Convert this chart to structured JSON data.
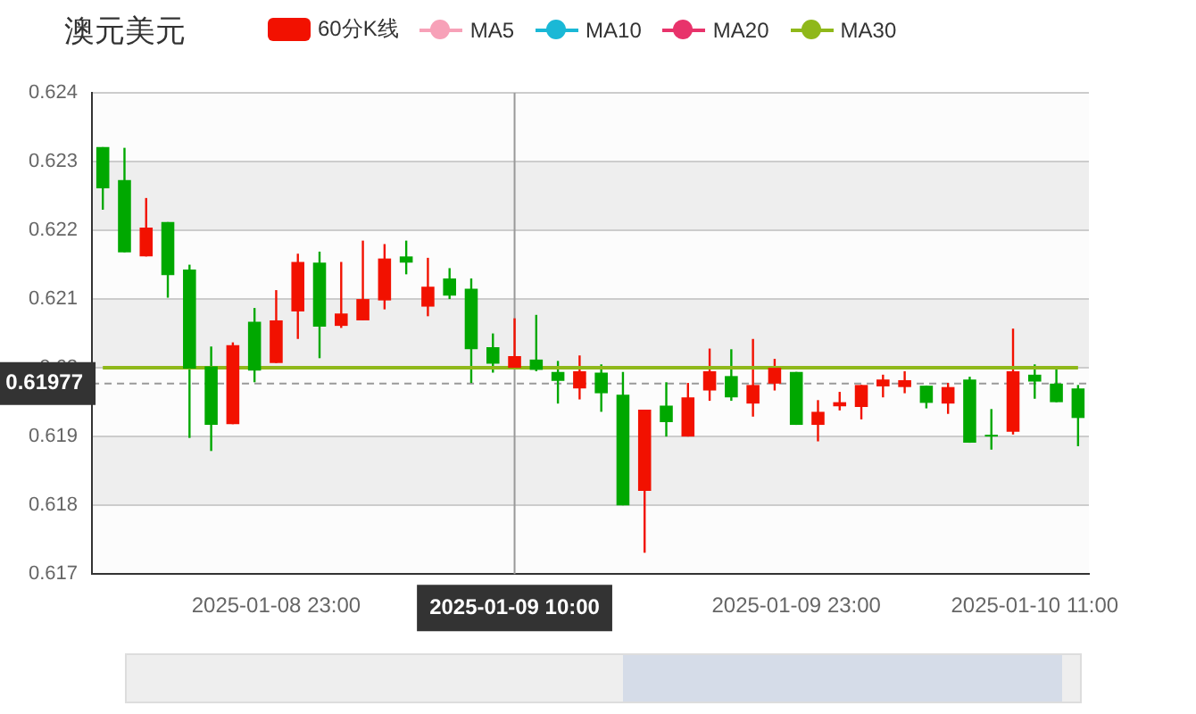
{
  "chart_data": {
    "type": "candlestick",
    "title": "澳元美元",
    "categories": [
      null,
      null,
      null,
      null,
      null,
      null,
      null,
      null,
      "2025-01-08 23:00",
      null,
      null,
      null,
      null,
      null,
      null,
      null,
      null,
      null,
      null,
      "2025-01-09 10:00",
      null,
      null,
      null,
      null,
      null,
      null,
      null,
      null,
      null,
      null,
      null,
      null,
      "2025-01-09 23:00",
      null,
      null,
      null,
      null,
      null,
      null,
      null,
      null,
      null,
      null,
      "2025-01-10 11:00",
      null,
      null
    ],
    "series": [
      {
        "name": "60分K线",
        "color": "#f21100",
        "ohlc": [
          [
            0.62321,
            0.62321,
            0.6223,
            0.62261
          ],
          [
            0.62273,
            0.6232,
            0.62168,
            0.62168
          ],
          [
            0.62162,
            0.62247,
            0.62162,
            0.62204
          ],
          [
            0.62212,
            0.62212,
            0.62102,
            0.62135
          ],
          [
            0.62143,
            0.6215,
            0.61898,
            0.61999
          ],
          [
            0.62002,
            0.62031,
            0.61879,
            0.61917
          ],
          [
            0.61918,
            0.62037,
            0.61918,
            0.62033
          ],
          [
            0.62067,
            0.62087,
            0.61979,
            0.61996
          ],
          [
            0.62007,
            0.62113,
            0.62007,
            0.62069
          ],
          [
            0.62082,
            0.62166,
            0.62042,
            0.62154
          ],
          [
            0.62153,
            0.62169,
            0.62014,
            0.6206
          ],
          [
            0.62061,
            0.62154,
            0.62058,
            0.62079
          ],
          [
            0.62069,
            0.62185,
            0.62069,
            0.621
          ],
          [
            0.62098,
            0.6218,
            0.62085,
            0.62159
          ],
          [
            0.62162,
            0.62185,
            0.62136,
            0.62153
          ],
          [
            0.62089,
            0.6216,
            0.62075,
            0.62118
          ],
          [
            0.6213,
            0.62145,
            0.621,
            0.62105
          ],
          [
            0.62115,
            0.6213,
            0.61978,
            0.62027
          ],
          [
            0.6203,
            0.6205,
            0.61993,
            0.62006
          ],
          [
            0.62,
            0.62072,
            0.62,
            0.62017
          ],
          [
            0.62012,
            0.62077,
            0.61995,
            0.61997
          ],
          [
            0.61994,
            0.6201,
            0.61948,
            0.61981
          ],
          [
            0.6197,
            0.62018,
            0.61954,
            0.61995
          ],
          [
            0.61993,
            0.62005,
            0.61936,
            0.61963
          ],
          [
            0.61961,
            0.61994,
            0.618,
            0.618
          ],
          [
            0.61821,
            0.61939,
            0.61731,
            0.61939
          ],
          [
            0.61945,
            0.61979,
            0.619,
            0.61921
          ],
          [
            0.619,
            0.61978,
            0.619,
            0.61957
          ],
          [
            0.61967,
            0.62028,
            0.61952,
            0.61995
          ],
          [
            0.61988,
            0.62027,
            0.61952,
            0.61957
          ],
          [
            0.61948,
            0.62042,
            0.61929,
            0.61975
          ],
          [
            0.61977,
            0.62013,
            0.61967,
            0.62
          ],
          [
            0.61994,
            0.61994,
            0.61917,
            0.61917
          ],
          [
            0.61917,
            0.61953,
            0.61893,
            0.61936
          ],
          [
            0.61944,
            0.61965,
            0.61938,
            0.6195
          ],
          [
            0.61943,
            0.61975,
            0.61925,
            0.61975
          ],
          [
            0.61973,
            0.6199,
            0.61957,
            0.61983
          ],
          [
            0.61972,
            0.61995,
            0.61963,
            0.61982
          ],
          [
            0.61974,
            0.61974,
            0.61941,
            0.61949
          ],
          [
            0.61948,
            0.61978,
            0.61933,
            0.61972
          ],
          [
            0.61983,
            0.61987,
            0.61891,
            0.61891
          ],
          [
            0.61902,
            0.6194,
            0.61881,
            0.619
          ],
          [
            0.61907,
            0.62057,
            0.61903,
            0.61995
          ],
          [
            0.6199,
            0.62005,
            0.61955,
            0.6198
          ],
          [
            0.61977,
            0.62,
            0.6195,
            0.6195
          ],
          [
            0.6197,
            0.61975,
            0.61886,
            0.61927
          ]
        ],
        "colors": [
          "#00a800",
          "#00a800",
          "#f21100",
          "#00a800",
          "#00a800",
          "#00a800",
          "#f21100",
          "#00a800",
          "#f21100",
          "#f21100",
          "#00a800",
          "#f21100",
          "#f21100",
          "#f21100",
          "#00a800",
          "#f21100",
          "#00a800",
          "#00a800",
          "#00a800",
          "#f21100",
          "#00a800",
          "#00a800",
          "#f21100",
          "#00a800",
          "#00a800",
          "#f21100",
          "#00a800",
          "#f21100",
          "#f21100",
          "#00a800",
          "#f21100",
          "#f21100",
          "#00a800",
          "#f21100",
          "#f21100",
          "#f21100",
          "#f21100",
          "#f21100",
          "#00a800",
          "#f21100",
          "#00a800",
          "#00a800",
          "#f21100",
          "#00a800",
          "#00a800",
          "#00a800"
        ]
      },
      {
        "name": "MA5",
        "type": "line",
        "color": "#f7a1b8",
        "values": [
          null,
          null,
          null,
          null,
          null,
          null,
          null,
          null,
          null,
          null,
          null,
          null,
          null,
          null,
          null,
          null,
          null,
          null,
          null,
          null,
          null,
          null,
          null,
          null,
          null,
          null,
          null,
          null,
          null,
          null,
          null,
          null,
          null,
          null,
          null,
          null,
          null,
          null,
          null,
          null,
          null,
          null,
          null,
          null,
          null,
          null
        ]
      },
      {
        "name": "MA10",
        "type": "line",
        "color": "#1ab8d6",
        "values": [
          null,
          null,
          null,
          null,
          null,
          null,
          null,
          null,
          null,
          null,
          null,
          null,
          null,
          null,
          null,
          null,
          null,
          null,
          null,
          null,
          null,
          null,
          null,
          null,
          null,
          null,
          null,
          null,
          null,
          null,
          null,
          null,
          null,
          null,
          null,
          null,
          null,
          null,
          null,
          null,
          null,
          null,
          null,
          null,
          null,
          null
        ]
      },
      {
        "name": "MA20",
        "type": "line",
        "color": "#e8336b",
        "values": [
          null,
          null,
          null,
          null,
          null,
          null,
          null,
          null,
          null,
          null,
          null,
          null,
          null,
          null,
          null,
          null,
          null,
          null,
          null,
          null,
          null,
          null,
          null,
          null,
          null,
          null,
          null,
          null,
          null,
          null,
          null,
          null,
          null,
          null,
          null,
          null,
          null,
          null,
          null,
          null,
          null,
          null,
          null,
          null,
          null,
          null
        ]
      },
      {
        "name": "MA30",
        "type": "line",
        "color": "#8fb81a",
        "values": [
          0.62,
          0.62,
          0.62,
          0.62,
          0.62,
          0.62,
          0.62,
          0.62,
          0.62,
          0.62,
          0.62,
          0.62,
          0.62,
          0.62,
          0.62,
          0.62,
          0.62,
          0.62,
          0.62,
          0.62,
          0.62,
          0.62,
          0.62,
          0.62,
          0.62,
          0.62,
          0.62,
          0.62,
          0.62,
          0.62,
          0.62,
          0.62,
          0.62,
          0.62,
          0.62,
          0.62,
          0.62,
          0.62,
          0.62,
          0.62,
          0.62,
          0.62,
          0.62,
          0.62,
          0.62,
          0.62
        ]
      }
    ],
    "ylim": [
      0.617,
      0.624
    ],
    "yticks": [
      0.617,
      0.618,
      0.619,
      0.62,
      0.621,
      0.622,
      0.623,
      0.624
    ],
    "grid": "y",
    "legend": "top",
    "marker": "none",
    "ref_lines": [
      {
        "axis": "y",
        "value": 0.61977,
        "label": "0.61977",
        "color": "#999999",
        "line_style": "dashed"
      },
      {
        "axis": "x",
        "value": "2025-01-09 10:00",
        "label": "2025-01-09 10:00",
        "color": "#999999",
        "line_style": "solid"
      }
    ]
  }
}
